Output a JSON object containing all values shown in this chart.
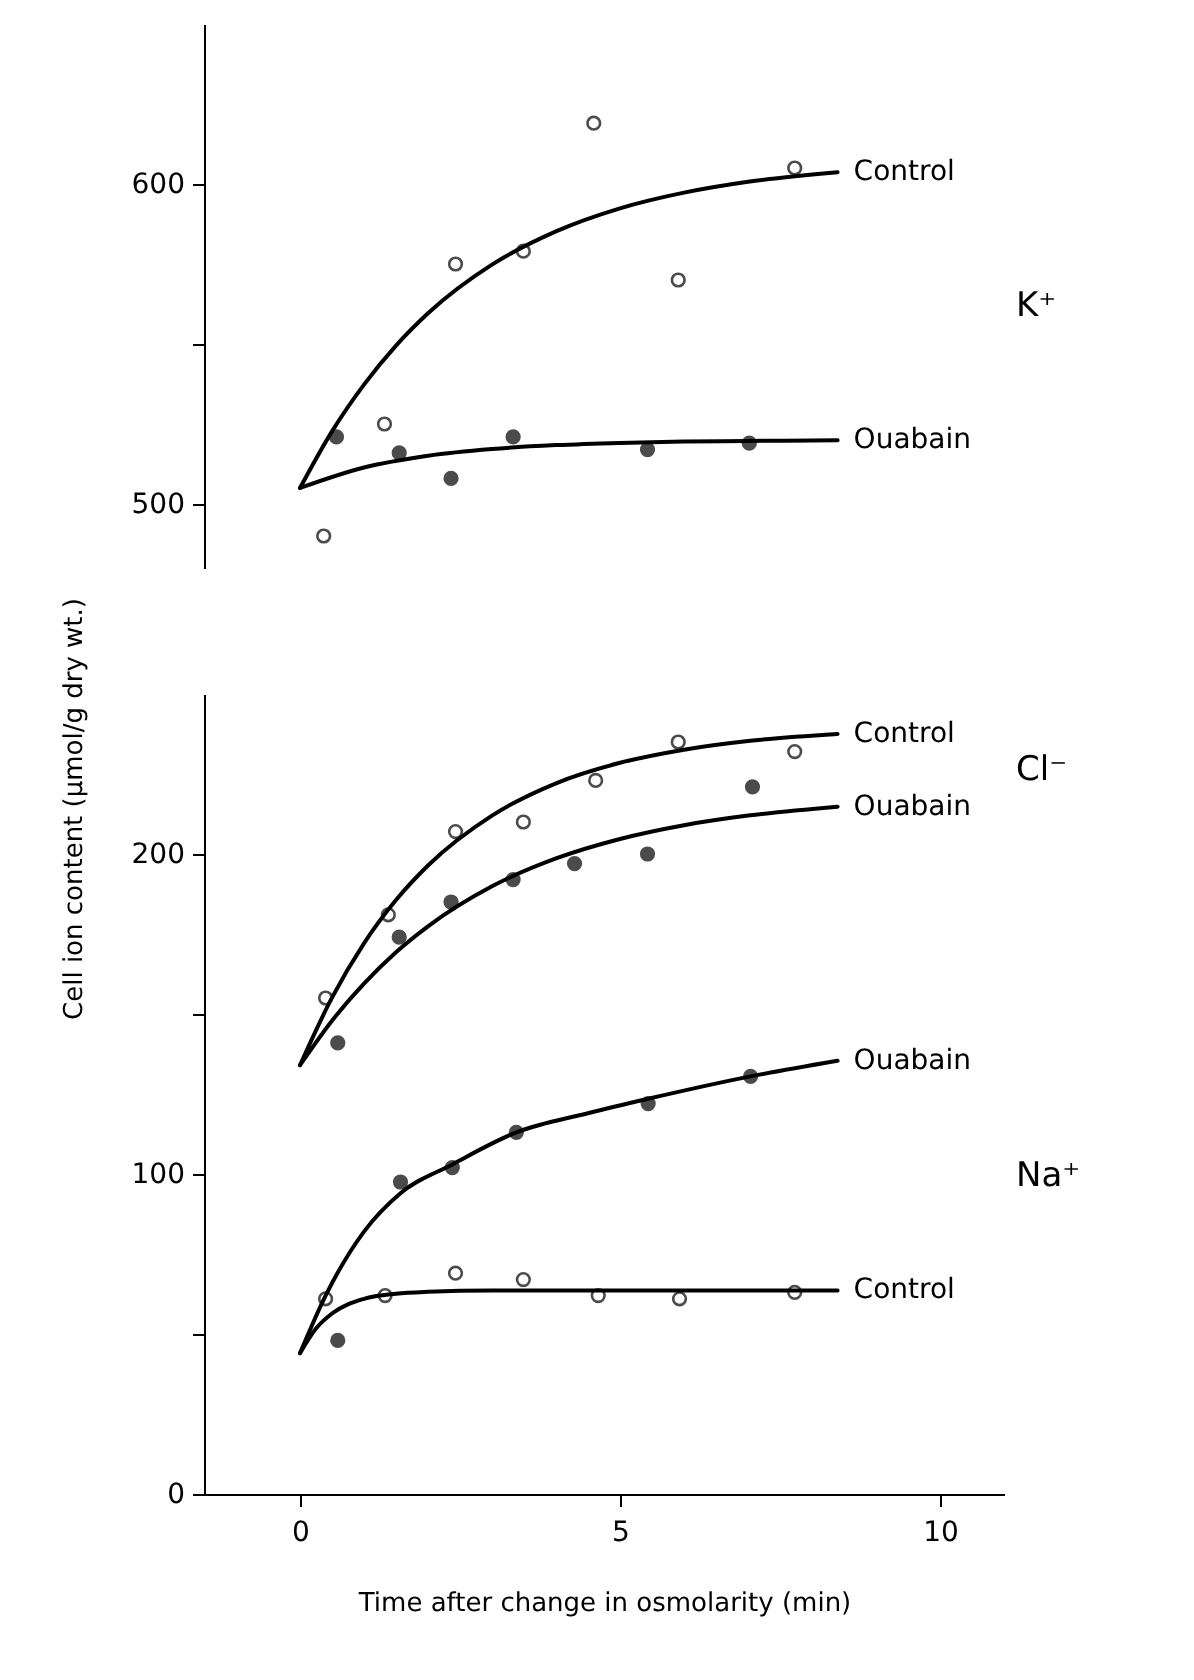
{
  "chart_data": [
    {
      "type": "scatter",
      "marker": "circle",
      "xlim": [
        -1.5,
        10
      ],
      "xticks": [
        0,
        5,
        10
      ],
      "ylim": [
        480,
        650
      ],
      "yticks": [
        500,
        {
          "value": 550,
          "label": null
        },
        600
      ],
      "tick_labels": "y",
      "annotations": [
        "K⁺"
      ],
      "series": [
        {
          "color": "#ffffff",
          "x": [
            0.37,
            1.32,
            2.43,
            3.49,
            4.59,
            5.91,
            7.73
          ],
          "values": [
            490,
            525,
            575,
            579,
            619,
            570,
            605
          ]
        },
        {
          "color": "#000000",
          "x": [
            0.57,
            1.55,
            2.36,
            3.33,
            5.43,
            7.02
          ],
          "values": [
            521,
            516,
            508,
            521,
            517,
            519
          ]
        },
        {
          "type": "line",
          "marker": "none",
          "name": "Control",
          "color": "#000000",
          "x": [
            0,
            0.5,
            1,
            1.5,
            2,
            3,
            4,
            5,
            6,
            7,
            8.4
          ],
          "values": [
            505,
            522.7,
            537.3,
            549.5,
            559.6,
            574.8,
            585.2,
            592.4,
            597.3,
            600.7,
            603.7
          ]
        },
        {
          "type": "line",
          "marker": "none",
          "name": "Ouabain",
          "color": "#000000",
          "x": [
            0,
            1,
            2,
            3,
            4,
            5,
            6,
            7,
            8.4
          ],
          "values": [
            505,
            511.4,
            515.1,
            517.2,
            518.4,
            519.1,
            519.5,
            519.7,
            519.9
          ]
        }
      ]
    },
    {
      "type": "scatter",
      "marker": "circle",
      "xlabel": "Time after change in osmolarity (min)",
      "ylabel": "Cell ion content (µmol/g dry wt.)",
      "xlim": [
        -1.5,
        11
      ],
      "xticks": [
        0,
        5,
        10
      ],
      "ylim": [
        0,
        250
      ],
      "yticks": [
        0,
        {
          "value": 50,
          "label": null
        },
        100,
        {
          "value": 150,
          "label": null
        },
        200
      ],
      "annotations": [
        "Cl⁻",
        "Na⁺"
      ],
      "series": [
        {
          "color": "#ffffff",
          "x": [
            0.4,
            1.38,
            2.43,
            3.49,
            4.62,
            5.91,
            7.73
          ],
          "values": [
            155,
            181,
            207,
            210,
            223,
            235,
            232
          ]
        },
        {
          "color": "#000000",
          "x": [
            0.59,
            1.55,
            2.36,
            3.33,
            4.29,
            5.43,
            7.07
          ],
          "values": [
            141,
            174,
            185,
            192,
            197,
            200,
            221
          ]
        },
        {
          "type": "line",
          "marker": "none",
          "name": "Control",
          "color": "#000000",
          "x": [
            0,
            0.5,
            1,
            1.5,
            2,
            3,
            4,
            5,
            6,
            7,
            8.4
          ],
          "values": [
            134,
            155.1,
            172.1,
            185.6,
            196.4,
            212,
            222.1,
            228.5,
            232.6,
            235.3,
            237.5
          ]
        },
        {
          "type": "line",
          "marker": "none",
          "name": "Ouabain",
          "color": "#000000",
          "x": [
            0,
            0.5,
            1,
            1.5,
            2,
            3,
            4,
            5,
            6,
            7,
            8.4
          ],
          "values": [
            134,
            147.9,
            159.5,
            169.3,
            177.4,
            189.9,
            198.6,
            204.7,
            209,
            212,
            214.8
          ]
        },
        {
          "color": "#000000",
          "x": [
            0.59,
            1.57,
            2.38,
            3.38,
            5.44,
            7.04
          ],
          "values": [
            48,
            97.5,
            102,
            113,
            122,
            130.5
          ]
        },
        {
          "color": "#ffffff",
          "x": [
            0.4,
            1.33,
            2.43,
            3.49,
            4.66,
            5.93,
            7.73
          ],
          "values": [
            61,
            62,
            69,
            67,
            62,
            61,
            63
          ]
        },
        {
          "type": "line",
          "marker": "none",
          "name": "Ouabain",
          "color": "#000000",
          "x": [
            0,
            0.4,
            1,
            1.57,
            2.38,
            3.38,
            4.5,
            5.44,
            7.04,
            8.4
          ],
          "values": [
            44,
            62,
            82,
            94,
            103,
            113,
            119,
            123.5,
            130.5,
            135.4
          ]
        },
        {
          "type": "line",
          "marker": "none",
          "name": "Control",
          "color": "#000000",
          "x": [
            0,
            0.25,
            0.5,
            1,
            1.5,
            2,
            3,
            8.4
          ],
          "values": [
            44,
            51.7,
            56.4,
            61,
            62.6,
            63.2,
            63.6,
            63.6
          ]
        }
      ]
    }
  ]
}
